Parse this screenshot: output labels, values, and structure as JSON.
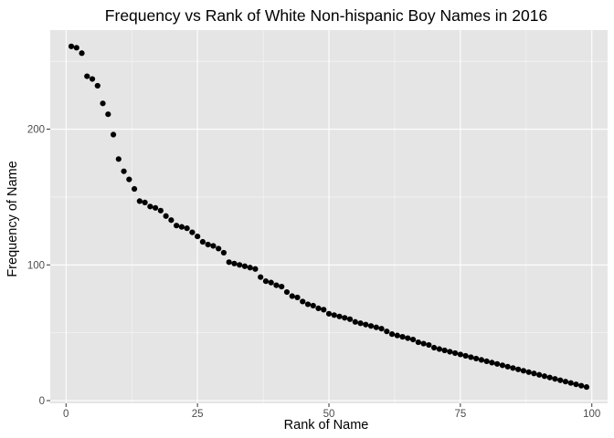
{
  "chart_data": {
    "type": "scatter",
    "title": "Frequency vs Rank of White Non-hispanic Boy Names in 2016",
    "xlabel": "Rank of Name",
    "ylabel": "Frequency of Name",
    "xlim": [
      -3,
      103
    ],
    "ylim": [
      -2,
      273
    ],
    "x_ticks": [
      0,
      25,
      50,
      75,
      100
    ],
    "x_tick_labels": [
      "0",
      "25",
      "50",
      "75",
      "100"
    ],
    "y_ticks": [
      0,
      100,
      200
    ],
    "y_tick_labels": [
      "0",
      "100",
      "200"
    ],
    "grid": true,
    "legend": "none",
    "colors": {
      "panel": "#e5e5e5",
      "grid_major": "#ffffff",
      "point": "#000000"
    },
    "x": [
      1,
      2,
      3,
      4,
      5,
      6,
      7,
      8,
      9,
      10,
      11,
      12,
      13,
      14,
      15,
      16,
      17,
      18,
      19,
      20,
      21,
      22,
      23,
      24,
      25,
      26,
      27,
      28,
      29,
      30,
      31,
      32,
      33,
      34,
      35,
      36,
      37,
      38,
      39,
      40,
      41,
      42,
      43,
      44,
      45,
      46,
      47,
      48,
      49,
      50,
      51,
      52,
      53,
      54,
      55,
      56,
      57,
      58,
      59,
      60,
      61,
      62,
      63,
      64,
      65,
      66,
      67,
      68,
      69,
      70,
      71,
      72,
      73,
      74,
      75,
      76,
      77,
      78,
      79,
      80,
      81,
      82,
      83,
      84,
      85,
      86,
      87,
      88,
      89,
      90,
      91,
      92,
      93,
      94,
      95,
      96,
      97,
      98,
      99
    ],
    "y": [
      261,
      260,
      256,
      239,
      237,
      232,
      219,
      211,
      196,
      178,
      169,
      163,
      156,
      147,
      146,
      143,
      142,
      140,
      136,
      133,
      129,
      128,
      127,
      124,
      121,
      117,
      115,
      114,
      112,
      109,
      102,
      101,
      100,
      99,
      98,
      97,
      91,
      88,
      87,
      85,
      84,
      80,
      77,
      76,
      73,
      71,
      70,
      68,
      67,
      64,
      63,
      62,
      61,
      60,
      58,
      57,
      56,
      55,
      54,
      53,
      51,
      49,
      48,
      47,
      46,
      45,
      43,
      42,
      41,
      39,
      38,
      37,
      36,
      35,
      34,
      33,
      32,
      31,
      30,
      29,
      28,
      27,
      26,
      25,
      24,
      23,
      22,
      21,
      20,
      19,
      18,
      17,
      16,
      15,
      14,
      13,
      12,
      11,
      10
    ]
  }
}
